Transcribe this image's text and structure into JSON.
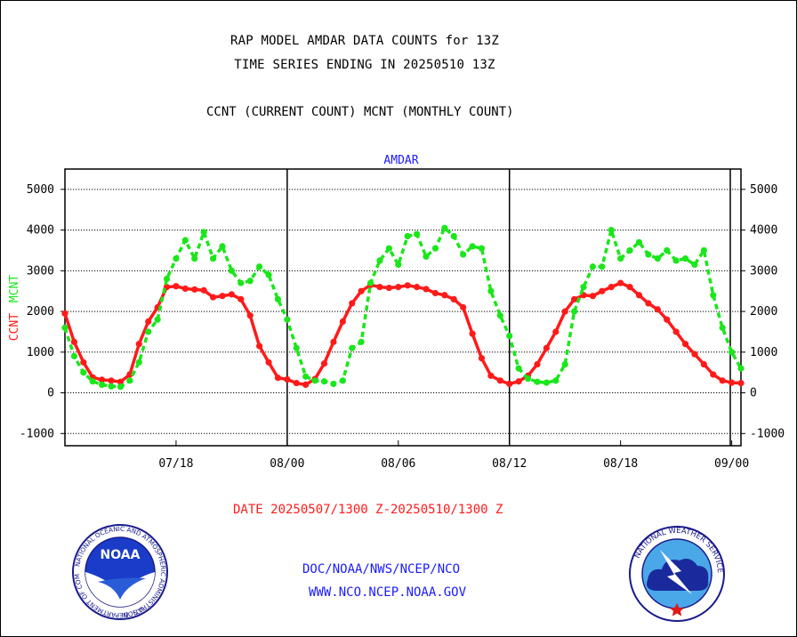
{
  "header": {
    "title_line1": "RAP MODEL AMDAR DATA COUNTS for 13Z",
    "title_line2": "TIME SERIES ENDING IN 20250510 13Z",
    "subtitle": "CCNT (CURRENT COUNT) MCNT (MONTHLY COUNT)"
  },
  "footer": {
    "date_range": "DATE 20250507/1300 Z-20250510/1300 Z",
    "link_doc": "DOC/NOAA/NWS/NCEP/NCO",
    "link_web": "WWW.NCO.NCEP.NOAA.GOV"
  },
  "logos": {
    "noaa_text": "NOAA",
    "noaa_ring": "NATIONAL OCEANIC AND ATMOSPHERIC ADMINISTRATION",
    "noaa_ring_bottom": "U.S. DEPARTMENT OF COMMERCE",
    "nws_ring": "NATIONAL WEATHER SERVICE"
  },
  "colors": {
    "ccnt": "#ff1a1a",
    "mcnt": "#1ae61a",
    "amdar_label": "#1a1aff",
    "grid": "#000000"
  },
  "chart_data": {
    "type": "line",
    "panel_label": "AMDAR",
    "ylabel_parts": [
      {
        "text": "CCNT",
        "color": "#ff1a1a"
      },
      {
        "text": "MCNT",
        "color": "#1ae61a"
      }
    ],
    "ylim": [
      -1300,
      5500
    ],
    "yticks": [
      -1000,
      0,
      1000,
      2000,
      3000,
      4000,
      5000
    ],
    "ytick_labels": [
      "-1000",
      "0",
      "1000",
      "2000",
      "3000",
      "4000",
      "5000"
    ],
    "x_range": [
      0,
      73
    ],
    "xticks": [
      {
        "x": 12,
        "label": "07/18"
      },
      {
        "x": 24,
        "label": "08/00"
      },
      {
        "x": 36,
        "label": "08/06"
      },
      {
        "x": 48,
        "label": "08/12"
      },
      {
        "x": 60,
        "label": "08/18"
      },
      {
        "x": 72,
        "label": "09/00"
      }
    ],
    "day_boundaries": [
      24,
      48
    ],
    "grid": true,
    "series": [
      {
        "name": "CCNT",
        "color": "#ff1a1a",
        "x": [
          0,
          1,
          2,
          3,
          4,
          5,
          6,
          7,
          8,
          9,
          10,
          11,
          12,
          13,
          14,
          15,
          16,
          17,
          18,
          19,
          20,
          21,
          22,
          23,
          24,
          25,
          26,
          27,
          28,
          29,
          30,
          31,
          32,
          33,
          34,
          35,
          36,
          37,
          38,
          39,
          40,
          41,
          42,
          43,
          44,
          45,
          46,
          47,
          48,
          49,
          50,
          51,
          52,
          53,
          54,
          55,
          56,
          57,
          58,
          59,
          60,
          61,
          62,
          63,
          64,
          65,
          66,
          67,
          68,
          69,
          70,
          71,
          72,
          73
        ],
        "values": [
          1950,
          1250,
          750,
          380,
          320,
          300,
          270,
          450,
          1200,
          1750,
          2100,
          2600,
          2620,
          2560,
          2540,
          2520,
          2350,
          2380,
          2420,
          2300,
          1900,
          1150,
          750,
          370,
          330,
          240,
          200,
          340,
          720,
          1250,
          1750,
          2200,
          2500,
          2650,
          2600,
          2580,
          2600,
          2640,
          2600,
          2550,
          2450,
          2400,
          2300,
          2100,
          1450,
          850,
          420,
          300,
          220,
          280,
          420,
          700,
          1100,
          1500,
          2000,
          2300,
          2400,
          2380,
          2500,
          2600,
          2700,
          2600,
          2400,
          2200,
          2050,
          1800,
          1500,
          1200,
          950,
          700,
          450,
          300,
          250,
          240
        ]
      },
      {
        "name": "MCNT",
        "color": "#1ae61a",
        "x": [
          0,
          1,
          2,
          3,
          4,
          5,
          6,
          7,
          8,
          9,
          10,
          11,
          12,
          13,
          14,
          15,
          16,
          17,
          18,
          19,
          20,
          21,
          22,
          23,
          24,
          25,
          26,
          27,
          28,
          29,
          30,
          31,
          32,
          33,
          34,
          35,
          36,
          37,
          38,
          39,
          40,
          41,
          42,
          43,
          44,
          45,
          46,
          47,
          48,
          49,
          50,
          51,
          52,
          53,
          54,
          55,
          56,
          57,
          58,
          59,
          60,
          61,
          62,
          63,
          64,
          65,
          66,
          67,
          68,
          69,
          70,
          71,
          72,
          73
        ],
        "values": [
          1600,
          900,
          500,
          280,
          200,
          160,
          150,
          300,
          750,
          1500,
          1800,
          2800,
          3300,
          3750,
          3300,
          3950,
          3300,
          3600,
          3000,
          2700,
          2750,
          3100,
          2900,
          2300,
          1800,
          1100,
          400,
          300,
          280,
          220,
          300,
          1100,
          1250,
          2700,
          3250,
          3550,
          3150,
          3850,
          3900,
          3350,
          3550,
          4050,
          3850,
          3400,
          3600,
          3550,
          2500,
          1900,
          1400,
          600,
          350,
          270,
          250,
          300,
          700,
          2000,
          2600,
          3100,
          3100,
          4000,
          3300,
          3500,
          3700,
          3400,
          3300,
          3500,
          3250,
          3300,
          3150,
          3500,
          2400,
          1600,
          1000,
          600
        ]
      }
    ]
  }
}
